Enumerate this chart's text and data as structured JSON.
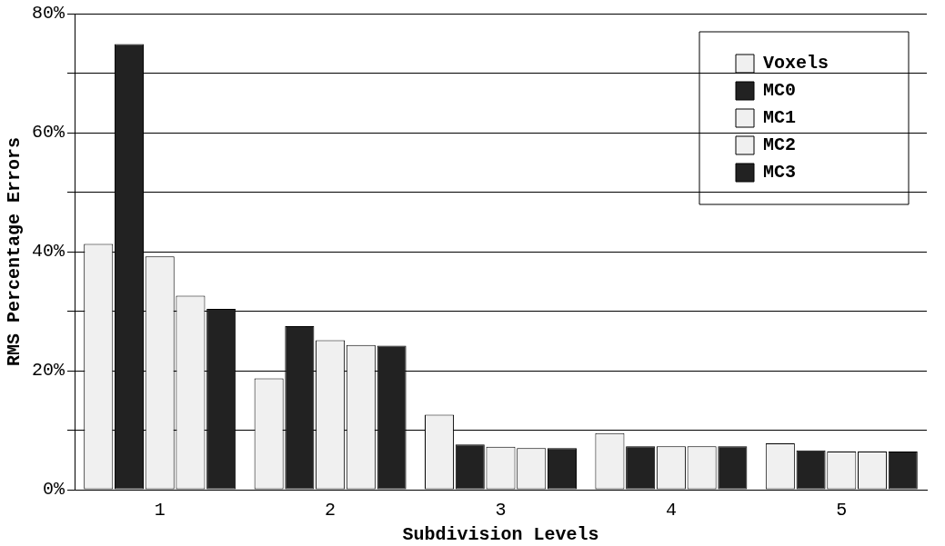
{
  "chart_data": {
    "type": "bar",
    "xlabel": "Subdivision Levels",
    "ylabel": "RMS Percentage Errors",
    "categories": [
      "1",
      "2",
      "3",
      "4",
      "5"
    ],
    "series": [
      {
        "name": "Voxels",
        "color": "#f0f0f0",
        "values": [
          41.3,
          18.7,
          12.6,
          9.5,
          7.8
        ]
      },
      {
        "name": "MC0",
        "color": "#222222",
        "values": [
          74.9,
          27.5,
          7.6,
          7.3,
          6.6
        ]
      },
      {
        "name": "MC1",
        "color": "#f0f0f0",
        "values": [
          39.2,
          25.1,
          7.2,
          7.3,
          6.4
        ]
      },
      {
        "name": "MC2",
        "color": "#f0f0f0",
        "values": [
          32.6,
          24.3,
          7.0,
          7.3,
          6.4
        ]
      },
      {
        "name": "MC3",
        "color": "#222222",
        "values": [
          30.4,
          24.2,
          7.0,
          7.3,
          6.4
        ]
      }
    ],
    "ylim": [
      0,
      80
    ],
    "yticks": [
      {
        "value": 0,
        "label": "0%"
      },
      {
        "value": 10,
        "label": null
      },
      {
        "value": 20,
        "label": "20%"
      },
      {
        "value": 30,
        "label": null
      },
      {
        "value": 40,
        "label": "40%"
      },
      {
        "value": 50,
        "label": null
      },
      {
        "value": 60,
        "label": "60%"
      },
      {
        "value": 70,
        "label": null
      },
      {
        "value": 80,
        "label": "80%"
      }
    ],
    "grid": "y",
    "legend": "top right"
  }
}
